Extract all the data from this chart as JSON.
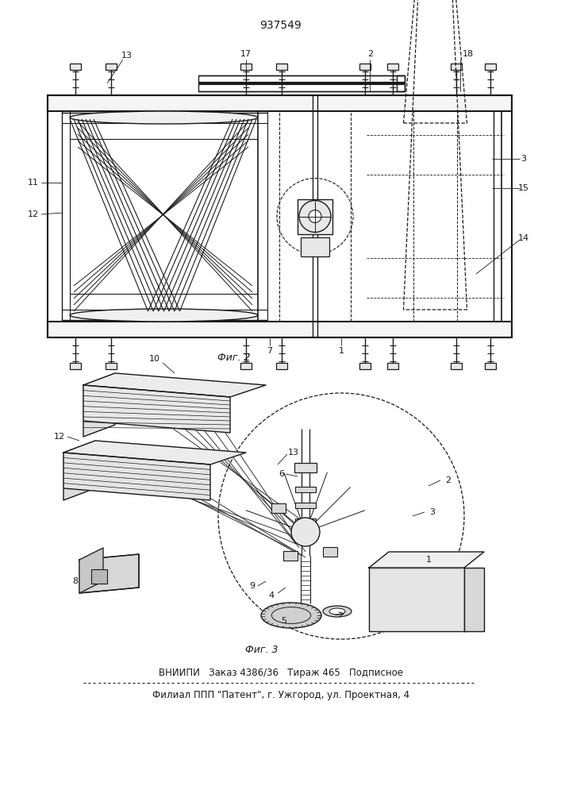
{
  "title": "937549",
  "fig2_label": "Фиг. 2",
  "fig3_label": "Фиг. 3",
  "footer_line1": "ВНИИПИ   Заказ 4386/36   Тираж 465   Подписное",
  "footer_line2": "Филиал ППП \"Патент\", г. Ужгород, ул. Проектная, 4",
  "bg_color": "#ffffff",
  "lc": "#1a1a1a"
}
